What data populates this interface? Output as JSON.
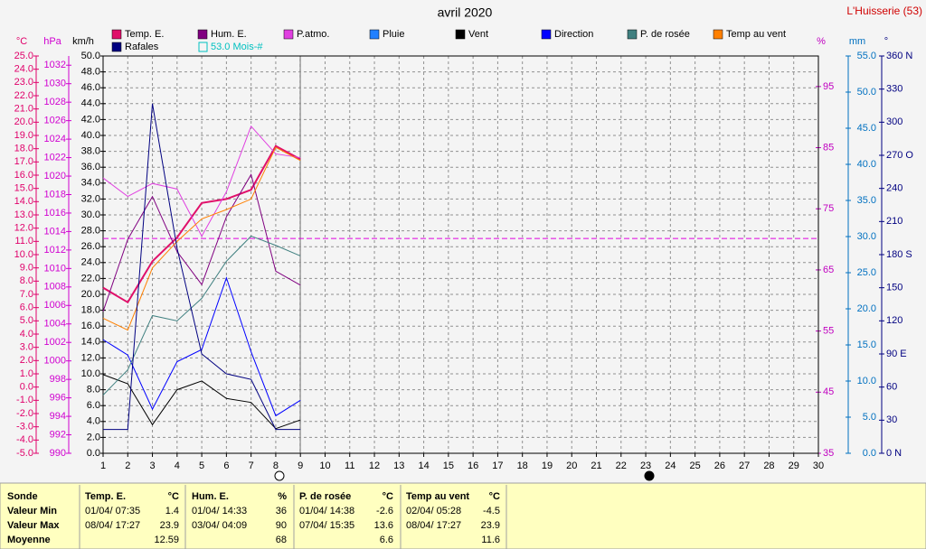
{
  "chart_data": {
    "type": "line",
    "title": "avril 2020",
    "station": "L'Huisserie (53)",
    "x": [
      1,
      2,
      3,
      4,
      5,
      6,
      7,
      8,
      9
    ],
    "xlim": [
      1,
      30
    ],
    "xticks": [
      1,
      2,
      3,
      4,
      5,
      6,
      7,
      8,
      9,
      10,
      11,
      12,
      13,
      14,
      15,
      16,
      17,
      18,
      19,
      20,
      21,
      22,
      23,
      24,
      25,
      26,
      27,
      28,
      29,
      30
    ],
    "axes": [
      {
        "label": "°C",
        "color": "#e0006a",
        "ylim": [
          -5,
          25
        ],
        "yticks": [
          {
            "value": -5,
            "label": "-5.0"
          },
          {
            "value": -4,
            "label": "-4.0"
          },
          {
            "value": -3,
            "label": "-3.0"
          },
          {
            "value": -2,
            "label": "-2.0"
          },
          {
            "value": -1,
            "label": "-1.0"
          },
          {
            "value": 0,
            "label": "0.0"
          },
          {
            "value": 1,
            "label": "1.0"
          },
          {
            "value": 2,
            "label": "2.0"
          },
          {
            "value": 3,
            "label": "3.0"
          },
          {
            "value": 4,
            "label": "4.0"
          },
          {
            "value": 5,
            "label": "5.0"
          },
          {
            "value": 6,
            "label": "6.0"
          },
          {
            "value": 7,
            "label": "7.0"
          },
          {
            "value": 8,
            "label": "8.0"
          },
          {
            "value": 9,
            "label": "9.0"
          },
          {
            "value": 10,
            "label": "10.0"
          },
          {
            "value": 11,
            "label": "11.0"
          },
          {
            "value": 12,
            "label": "12.0"
          },
          {
            "value": 13,
            "label": "13.0"
          },
          {
            "value": 14,
            "label": "14.0"
          },
          {
            "value": 15,
            "label": "15.0"
          },
          {
            "value": 16,
            "label": "16.0"
          },
          {
            "value": 17,
            "label": "17.0"
          },
          {
            "value": 18,
            "label": "18.0"
          },
          {
            "value": 19,
            "label": "19.0"
          },
          {
            "value": 20,
            "label": "20.0"
          },
          {
            "value": 21,
            "label": "21.0"
          },
          {
            "value": 22,
            "label": "22.0"
          },
          {
            "value": 23,
            "label": "23.0"
          },
          {
            "value": 24,
            "label": "24.0"
          },
          {
            "value": 25,
            "label": "25.0"
          }
        ]
      },
      {
        "label": "hPa",
        "color": "#d000d0",
        "ylim": [
          990,
          1033
        ],
        "yticks": [
          990,
          992,
          994,
          996,
          998,
          1000,
          1002,
          1004,
          1006,
          1008,
          1010,
          1012,
          1014,
          1016,
          1018,
          1020,
          1022,
          1024,
          1026,
          1028,
          1030,
          1032
        ]
      },
      {
        "label": "km/h",
        "color": "#000000",
        "grid": true,
        "ylim": [
          0,
          50
        ],
        "yticks": [
          {
            "value": 0,
            "label": "0.0"
          },
          {
            "value": 2,
            "label": "2.0"
          },
          {
            "value": 4,
            "label": "4.0"
          },
          {
            "value": 6,
            "label": "6.0"
          },
          {
            "value": 8,
            "label": "8.0"
          },
          {
            "value": 10,
            "label": "10.0"
          },
          {
            "value": 12,
            "label": "12.0"
          },
          {
            "value": 14,
            "label": "14.0"
          },
          {
            "value": 16,
            "label": "16.0"
          },
          {
            "value": 18,
            "label": "18.0"
          },
          {
            "value": 20,
            "label": "20.0"
          },
          {
            "value": 22,
            "label": "22.0"
          },
          {
            "value": 24,
            "label": "24.0"
          },
          {
            "value": 26,
            "label": "26.0"
          },
          {
            "value": 28,
            "label": "28.0"
          },
          {
            "value": 30,
            "label": "30.0"
          },
          {
            "value": 32,
            "label": "32.0"
          },
          {
            "value": 34,
            "label": "34.0"
          },
          {
            "value": 36,
            "label": "36.0"
          },
          {
            "value": 38,
            "label": "38.0"
          },
          {
            "value": 40,
            "label": "40.0"
          },
          {
            "value": 42,
            "label": "42.0"
          },
          {
            "value": 44,
            "label": "44.0"
          },
          {
            "value": 46,
            "label": "46.0"
          },
          {
            "value": 48,
            "label": "48.0"
          },
          {
            "value": 50,
            "label": "50.0"
          }
        ]
      },
      {
        "label": "%",
        "color": "#c000c0",
        "ylim": [
          35,
          100
        ],
        "yticks": [
          35,
          45,
          55,
          65,
          75,
          85,
          95
        ]
      },
      {
        "label": "mm",
        "color": "#0070c0",
        "ylim": [
          0,
          55
        ],
        "yticks": [
          {
            "value": 0,
            "label": "0.0"
          },
          {
            "value": 5,
            "label": "5.0"
          },
          {
            "value": 10,
            "label": "10.0"
          },
          {
            "value": 15,
            "label": "15.0"
          },
          {
            "value": 20,
            "label": "20.0"
          },
          {
            "value": 25,
            "label": "25.0"
          },
          {
            "value": 30,
            "label": "30.0"
          },
          {
            "value": 35,
            "label": "35.0"
          },
          {
            "value": 40,
            "label": "40.0"
          },
          {
            "value": 45,
            "label": "45.0"
          },
          {
            "value": 50,
            "label": "50.0"
          },
          {
            "value": 55,
            "label": "55.0"
          }
        ]
      },
      {
        "label": "°",
        "color": "#000080",
        "ylim": [
          0,
          360
        ],
        "yticks": [
          {
            "value": 0,
            "label": "0   N"
          },
          {
            "value": 30,
            "label": "30"
          },
          {
            "value": 60,
            "label": "60"
          },
          {
            "value": 90,
            "label": "90  E"
          },
          {
            "value": 120,
            "label": "120"
          },
          {
            "value": 150,
            "label": "150"
          },
          {
            "value": 180,
            "label": "180 S"
          },
          {
            "value": 210,
            "label": "210"
          },
          {
            "value": 240,
            "label": "240"
          },
          {
            "value": 270,
            "label": "270 O"
          },
          {
            "value": 300,
            "label": "300"
          },
          {
            "value": 330,
            "label": "330"
          },
          {
            "value": 360,
            "label": "360 N"
          }
        ]
      }
    ],
    "reference_line": {
      "value": 1013.25,
      "axis": "hPa",
      "color": "#e000e0"
    },
    "series": [
      {
        "name": "Temp. E.",
        "color": "#e0106a",
        "axis": "°C",
        "width": 2,
        "values": [
          7.5,
          6.4,
          9.5,
          11.3,
          13.9,
          14.2,
          14.9,
          18.2,
          17.2
        ]
      },
      {
        "name": "Hum. E.",
        "color": "#800080",
        "axis": "%",
        "values": [
          58.2,
          70,
          77,
          68,
          62.6,
          73.7,
          80.6,
          64.8,
          62.5
        ]
      },
      {
        "name": "P.atmo.",
        "color": "#e040e0",
        "axis": "hPa",
        "values": [
          1019.8,
          1017.8,
          1019.2,
          1018.6,
          1013.5,
          1018.3,
          1025.4,
          1022.4,
          1022
        ]
      },
      {
        "name": "Pluie",
        "color": "#2080ff",
        "axis": "mm",
        "values": [
          null,
          null,
          null,
          null,
          null,
          null,
          null,
          null,
          null
        ]
      },
      {
        "name": "Vent",
        "color": "#000000",
        "axis": "km/h",
        "values": [
          9.9,
          8.75,
          3.6,
          8,
          9.1,
          6.9,
          6.4,
          3.1,
          4.2
        ]
      },
      {
        "name": "Direction",
        "color": "#0000ff",
        "axis": "°",
        "values": [
          103,
          89,
          40,
          83,
          94,
          159,
          92,
          34,
          48
        ]
      },
      {
        "name": "P. de rosée",
        "color": "#408080",
        "axis": "°C",
        "values": [
          -0.6,
          1.3,
          5.4,
          5,
          6.7,
          9.5,
          11.4,
          10.7,
          9.9
        ]
      },
      {
        "name": "Temp au vent",
        "color": "#ff8000",
        "axis": "°C",
        "values": [
          5.2,
          4.3,
          9,
          11,
          12.7,
          13.4,
          14.2,
          18.1,
          17.1
        ]
      },
      {
        "name": "Rafales",
        "color": "#000080",
        "axis": "km/h",
        "values": [
          3,
          3,
          44,
          25.8,
          12.5,
          10,
          9.3,
          3,
          3
        ]
      }
    ],
    "extra_legend": {
      "label": "53.0 Mois-#",
      "color": "#00c0c0"
    }
  },
  "table": {
    "row_labels": [
      "Sonde",
      "Valeur Min",
      "Valeur Max",
      "Moyenne"
    ],
    "groups": [
      {
        "title": "Temp. E.",
        "unit": "°C",
        "min": {
          "date": "01/04/ 07:35",
          "value": 1.4
        },
        "max": {
          "date": "08/04/ 17:27",
          "value": 23.9
        },
        "mean": 12.59
      },
      {
        "title": "Hum. E.",
        "unit": "%",
        "min": {
          "date": "01/04/ 14:33",
          "value": 36
        },
        "max": {
          "date": "03/04/ 04:09",
          "value": 90
        },
        "mean": 68
      },
      {
        "title": "P. de rosée",
        "unit": "°C",
        "min": {
          "date": "01/04/ 14:38",
          "value": -2.6
        },
        "max": {
          "date": "07/04/ 15:35",
          "value": 13.6
        },
        "mean": 6.6
      },
      {
        "title": "Temp au vent",
        "unit": "°C",
        "min": {
          "date": "02/04/ 05:28",
          "value": -4.5
        },
        "max": {
          "date": "08/04/ 17:27",
          "value": 23.9
        },
        "mean": 11.6
      }
    ]
  }
}
